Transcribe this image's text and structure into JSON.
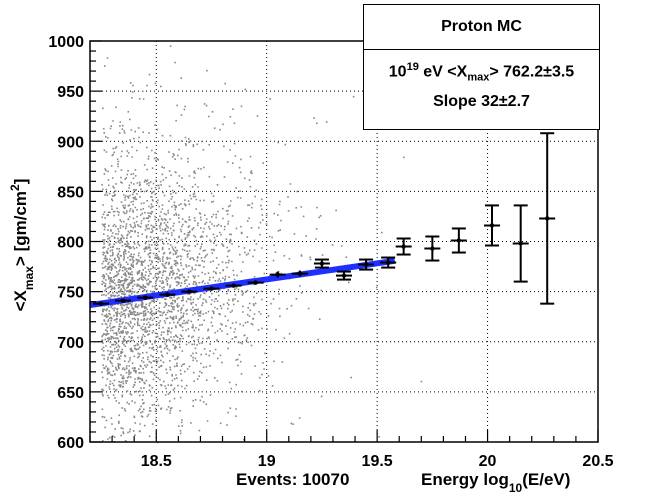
{
  "chart_data": {
    "type": "scatter",
    "title": "Proton MC",
    "xlabel_prefix": "Energy  log",
    "xlabel_sub": "10",
    "xlabel_suffix": "(E/eV)",
    "ylabel_prefix": "<X",
    "ylabel_sub": "max",
    "ylabel_mid": ">  [gm/cm",
    "ylabel_sup": "2",
    "ylabel_suffix": "]",
    "xlim": [
      18.2,
      20.5
    ],
    "ylim": [
      600,
      1000
    ],
    "xticks": [
      18.5,
      19,
      19.5,
      20,
      20.5
    ],
    "yticks": [
      600,
      650,
      700,
      750,
      800,
      850,
      900,
      950,
      1000
    ],
    "events_label": "Events: 10070",
    "fit": {
      "x_range": [
        18.2,
        19.58
      ],
      "slope": 32,
      "intercept_at_19": 762.2,
      "color": "#1f2fff"
    },
    "profile_points": [
      {
        "x": 18.25,
        "y": 738,
        "err": 2
      },
      {
        "x": 18.35,
        "y": 741,
        "err": 1.5
      },
      {
        "x": 18.45,
        "y": 744,
        "err": 1.5
      },
      {
        "x": 18.55,
        "y": 747,
        "err": 1.5
      },
      {
        "x": 18.65,
        "y": 750,
        "err": 1.5
      },
      {
        "x": 18.75,
        "y": 753,
        "err": 2
      },
      {
        "x": 18.85,
        "y": 756,
        "err": 2
      },
      {
        "x": 18.95,
        "y": 759,
        "err": 2
      },
      {
        "x": 19.05,
        "y": 767,
        "err": 3
      },
      {
        "x": 19.15,
        "y": 768,
        "err": 3
      },
      {
        "x": 19.25,
        "y": 778,
        "err": 4
      },
      {
        "x": 19.35,
        "y": 766,
        "err": 4
      },
      {
        "x": 19.45,
        "y": 777,
        "err": 5
      },
      {
        "x": 19.55,
        "y": 779,
        "err": 5
      },
      {
        "x": 19.62,
        "y": 795,
        "err": 8
      },
      {
        "x": 19.75,
        "y": 793,
        "err": 12
      },
      {
        "x": 19.87,
        "y": 801,
        "err": 12
      },
      {
        "x": 20.02,
        "y": 816,
        "err": 20
      },
      {
        "x": 20.15,
        "y": 798,
        "err": 38
      },
      {
        "x": 20.27,
        "y": 823,
        "err": 85
      }
    ],
    "scatter": {
      "n_points": 10070,
      "color": "#888888",
      "center_x": 18.25,
      "center_y": 745
    }
  },
  "info_box": {
    "title": "Proton MC",
    "line1_base": "10",
    "line1_exp": "19",
    "line1_mid": " eV <X",
    "line1_sub": "max",
    "line1_end": "> 762.2±3.5",
    "line2": "Slope 32±2.7"
  }
}
